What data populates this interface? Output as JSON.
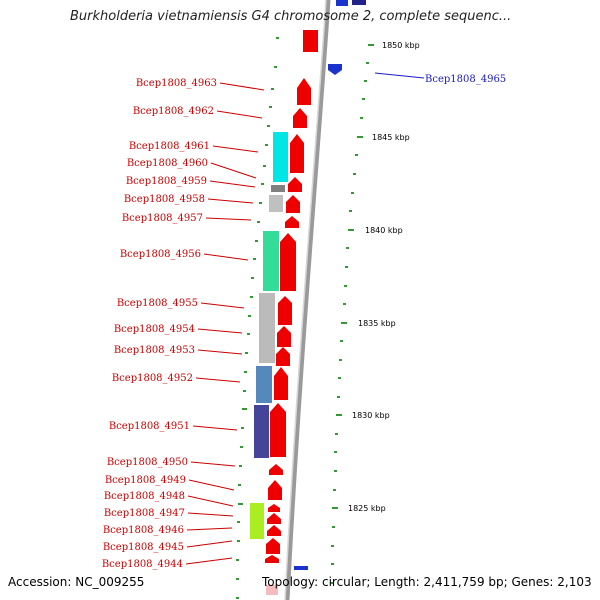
{
  "title": "Burkholderia vietnamiensis G4 chromosome 2, complete sequenc...",
  "footer": {
    "accession": "Accession: NC_009255",
    "topology": "Topology: circular; Length: 2,411,759 bp; Genes: 2,103"
  },
  "scale_labels": [
    "1850 kbp",
    "1845 kbp",
    "1840 kbp",
    "1835 kbp",
    "1830 kbp",
    "1825 kbp"
  ],
  "genes_left": [
    "Bcep1808_4963",
    "Bcep1808_4962",
    "Bcep1808_4961",
    "Bcep1808_4960",
    "Bcep1808_4959",
    "Bcep1808_4958",
    "Bcep1808_4957",
    "Bcep1808_4956",
    "Bcep1808_4955",
    "Bcep1808_4954",
    "Bcep1808_4953",
    "Bcep1808_4952",
    "Bcep1808_4951",
    "Bcep1808_4950",
    "Bcep1808_4949",
    "Bcep1808_4948",
    "Bcep1808_4947",
    "Bcep1808_4946",
    "Bcep1808_4945",
    "Bcep1808_4944"
  ],
  "genes_right": [
    "Bcep1808_4965"
  ],
  "colors": {
    "forward_gene": "#ee0000",
    "reverse_gene": "#1a33cc",
    "label_left": "#cc0000",
    "label_right": "#1a1acc",
    "tick": "#339933",
    "backbone": "#9a9a9a"
  },
  "cog_colors": [
    "#00e6e6",
    "#808080",
    "#c0c0c0",
    "#33dd99",
    "#bbbbbb",
    "#5588bb",
    "#444499",
    "#aaee22"
  ]
}
